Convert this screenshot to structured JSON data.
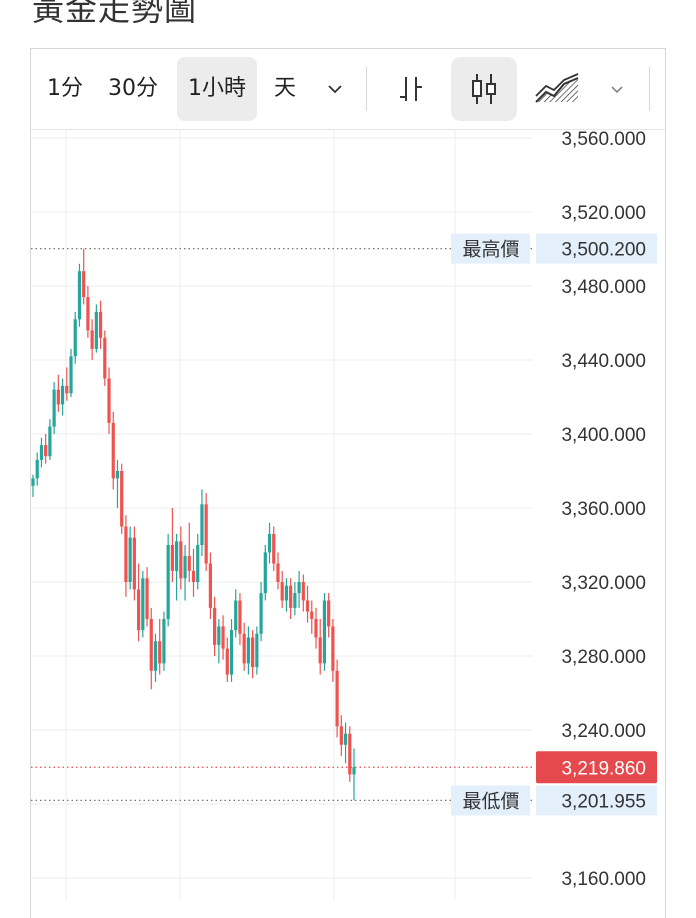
{
  "page": {
    "title": "黃金走勢圖"
  },
  "toolbar": {
    "intervals": [
      "1分",
      "30分",
      "1小時",
      "天"
    ],
    "active_interval": "1小時",
    "dropdown_icon": "chevron-down-icon",
    "chart_types": [
      "ohlc-bars-icon",
      "candlestick-icon",
      "area-chart-icon"
    ],
    "active_chart_type": "candlestick-icon",
    "chart_type_dropdown_icon": "chevron-down-icon"
  },
  "colors": {
    "up": "#26a69a",
    "down": "#ef5350",
    "high_low_label_bg": "#e3effb",
    "current_price_bg": "#e5484d",
    "grid": "#eeeeee"
  },
  "chart_data": {
    "type": "candlestick",
    "title": "黃金走勢圖",
    "interval": "1小時",
    "ylim": [
      3150,
      3570
    ],
    "y_ticks": [
      "3,560.000",
      "3,520.000",
      "3,480.000",
      "3,440.000",
      "3,400.000",
      "3,360.000",
      "3,320.000",
      "3,280.000",
      "3,240.000",
      "3,160.000"
    ],
    "y_tick_values": [
      3560,
      3520,
      3480,
      3440,
      3400,
      3360,
      3320,
      3280,
      3240,
      3160
    ],
    "grid": true,
    "high": {
      "label": "最高價",
      "value": 3500.2,
      "text": "3,500.200"
    },
    "low": {
      "label": "最低價",
      "value": 3201.955,
      "text": "3,201.955"
    },
    "current": {
      "value": 3219.86,
      "text": "3,219.860"
    },
    "series": [
      {
        "ohlc": [
          [
            3372,
            3378,
            3366,
            3376
          ],
          [
            3376,
            3390,
            3372,
            3386
          ],
          [
            3386,
            3398,
            3382,
            3394
          ],
          [
            3394,
            3400,
            3384,
            3388
          ],
          [
            3388,
            3408,
            3386,
            3404
          ],
          [
            3404,
            3428,
            3400,
            3424
          ],
          [
            3424,
            3432,
            3412,
            3416
          ],
          [
            3416,
            3430,
            3410,
            3426
          ],
          [
            3426,
            3436,
            3418,
            3422
          ],
          [
            3422,
            3446,
            3420,
            3442
          ],
          [
            3442,
            3466,
            3438,
            3462
          ],
          [
            3462,
            3492,
            3458,
            3488
          ],
          [
            3488,
            3500.2,
            3470,
            3474
          ],
          [
            3474,
            3480,
            3452,
            3456
          ],
          [
            3456,
            3462,
            3440,
            3446
          ],
          [
            3446,
            3470,
            3444,
            3466
          ],
          [
            3466,
            3472,
            3446,
            3452
          ],
          [
            3452,
            3456,
            3426,
            3430
          ],
          [
            3430,
            3436,
            3400,
            3406
          ],
          [
            3406,
            3412,
            3370,
            3376
          ],
          [
            3376,
            3386,
            3360,
            3380
          ],
          [
            3380,
            3384,
            3346,
            3350
          ],
          [
            3350,
            3356,
            3312,
            3320
          ],
          [
            3320,
            3350,
            3316,
            3344
          ],
          [
            3344,
            3350,
            3310,
            3316
          ],
          [
            3316,
            3330,
            3288,
            3294
          ],
          [
            3294,
            3326,
            3290,
            3322
          ],
          [
            3322,
            3328,
            3296,
            3300
          ],
          [
            3300,
            3306,
            3262,
            3272
          ],
          [
            3272,
            3292,
            3266,
            3288
          ],
          [
            3288,
            3300,
            3270,
            3276
          ],
          [
            3276,
            3304,
            3272,
            3300
          ],
          [
            3300,
            3346,
            3296,
            3340
          ],
          [
            3340,
            3360,
            3320,
            3326
          ],
          [
            3326,
            3346,
            3310,
            3342
          ],
          [
            3342,
            3350,
            3316,
            3322
          ],
          [
            3322,
            3340,
            3310,
            3334
          ],
          [
            3334,
            3352,
            3320,
            3326
          ],
          [
            3326,
            3338,
            3312,
            3320
          ],
          [
            3320,
            3346,
            3316,
            3340
          ],
          [
            3340,
            3370,
            3334,
            3362
          ],
          [
            3362,
            3368,
            3326,
            3330
          ],
          [
            3330,
            3336,
            3300,
            3306
          ],
          [
            3306,
            3312,
            3280,
            3286
          ],
          [
            3286,
            3300,
            3276,
            3296
          ],
          [
            3296,
            3302,
            3278,
            3284
          ],
          [
            3284,
            3290,
            3266,
            3270
          ],
          [
            3270,
            3300,
            3266,
            3294
          ],
          [
            3294,
            3316,
            3290,
            3310
          ],
          [
            3310,
            3314,
            3286,
            3292
          ],
          [
            3292,
            3298,
            3272,
            3276
          ],
          [
            3276,
            3296,
            3270,
            3290
          ],
          [
            3290,
            3294,
            3268,
            3274
          ],
          [
            3274,
            3296,
            3270,
            3292
          ],
          [
            3292,
            3320,
            3288,
            3314
          ],
          [
            3314,
            3340,
            3310,
            3336
          ],
          [
            3336,
            3352,
            3330,
            3346
          ],
          [
            3346,
            3350,
            3326,
            3330
          ],
          [
            3330,
            3336,
            3316,
            3320
          ],
          [
            3320,
            3326,
            3306,
            3310
          ],
          [
            3310,
            3322,
            3304,
            3318
          ],
          [
            3318,
            3322,
            3300,
            3306
          ],
          [
            3306,
            3320,
            3302,
            3314
          ],
          [
            3314,
            3326,
            3306,
            3320
          ],
          [
            3320,
            3324,
            3304,
            3310
          ],
          [
            3310,
            3318,
            3298,
            3304
          ],
          [
            3304,
            3310,
            3292,
            3300
          ],
          [
            3300,
            3306,
            3284,
            3290
          ],
          [
            3290,
            3300,
            3270,
            3276
          ],
          [
            3276,
            3314,
            3272,
            3310
          ],
          [
            3310,
            3314,
            3290,
            3296
          ],
          [
            3296,
            3300,
            3266,
            3272
          ],
          [
            3272,
            3278,
            3236,
            3242
          ],
          [
            3242,
            3248,
            3226,
            3232
          ],
          [
            3232,
            3244,
            3222,
            3238
          ],
          [
            3238,
            3242,
            3212,
            3216
          ],
          [
            3216,
            3230,
            3201.955,
            3219.86
          ]
        ]
      }
    ]
  }
}
